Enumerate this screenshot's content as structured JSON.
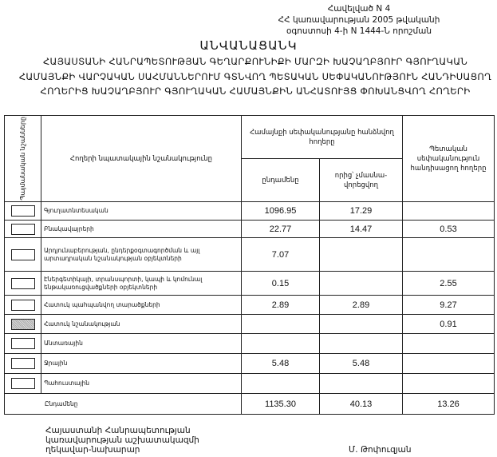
{
  "annex": {
    "line1": "Հավելված N 4",
    "line2": "ՀՀ կառավարության 2005 թվականի",
    "line3": "օգոստոսի 4-ի N 1444-Ն որոշման"
  },
  "title": "ԱՆՎԱՆԱՑԱՆԿ",
  "subtitle": "ՀԱՅԱՍՏԱՆԻ ՀԱՆՐԱՊԵՏՈՒԹՅԱՆ ԳԵՂԱՐՔՈՒՆԻՔԻ ՄԱՐԶԻ ԽԱՉԱՂԲՅՈՒՐ ԳՅՈՒՂԱԿԱՆ ՀԱՄԱՅՆՔԻ ՎԱՐՉԱԿԱՆ ՍԱՀՄԱՆՆԵՐՈՒՄ ԳՏՆՎՈՂ ՊԵՏԱԿԱՆ ՍԵՓԱԿԱՆՈՒԹՅՈՒՆ ՀԱՆԴԻՍԱՑՈՂ ՀՈՂԵՐԻՑ ԽԱՉԱՂԲՅՈՒՐ ԳՅՈՒՂԱԿԱՆ ՀԱՄԱՅՆՔԻՆ ԱՆՀԱՏՈՒՅՑ ՓՈԽԱՆՑՎՈՂ ՀՈՂԵՐԻ",
  "table": {
    "headers": {
      "symbols": "Պայմանական նշանները",
      "purpose": "Հողերի նպատակային նշանակությունը",
      "community_group": "Համայնքի սեփականությանը հանձնվող հողերը",
      "total": "ընդամենը",
      "non_privatizable": "որից՝ չմասնա-վորեցվող",
      "state": "Պետական սեփականություն հանդիսացող հողերը"
    },
    "rows": [
      {
        "label": "Գյուղատնտեսական",
        "total": "1096.95",
        "non_priv": "17.29",
        "state": "",
        "symbol": "plain"
      },
      {
        "label": "Բնակավայրերի",
        "total": "22.77",
        "non_priv": "14.47",
        "state": "0.53",
        "symbol": "plain"
      },
      {
        "label": "Արդյունաբերության, ընդերքօգտագործման և այլ արտադրական նշանակության օբյեկտների",
        "total": "7.07",
        "non_priv": "",
        "state": "",
        "symbol": "plain"
      },
      {
        "label": "Էներգետիկայի, տրանսպորտի, կապի և կոմունալ ենթակառուցվածքների օբյեկտների",
        "total": "0.15",
        "non_priv": "",
        "state": "2.55",
        "symbol": "plain"
      },
      {
        "label": "Հատուկ պահպանվող տարածքների",
        "total": "2.89",
        "non_priv": "2.89",
        "state": "9.27",
        "symbol": "plain"
      },
      {
        "label": "Հատուկ նշանակության",
        "total": "",
        "non_priv": "",
        "state": "0.91",
        "symbol": "dotted"
      },
      {
        "label": "Անտառային",
        "total": "",
        "non_priv": "",
        "state": "",
        "symbol": "plain"
      },
      {
        "label": "Ջրային",
        "total": "5.48",
        "non_priv": "5.48",
        "state": "",
        "symbol": "plain"
      },
      {
        "label": "Պահուստային",
        "total": "",
        "non_priv": "",
        "state": "",
        "symbol": "plain"
      }
    ],
    "totals": {
      "label": "Ընդամենը",
      "total": "1135.30",
      "non_priv": "40.13",
      "state": "13.26"
    }
  },
  "footer": {
    "line1": "Հայաստանի Հանրապետության",
    "line2": "կառավարության աշխատակազմի",
    "line3": "ղեկավար-նախարար",
    "signer": "Մ. Թոփուզյան"
  }
}
